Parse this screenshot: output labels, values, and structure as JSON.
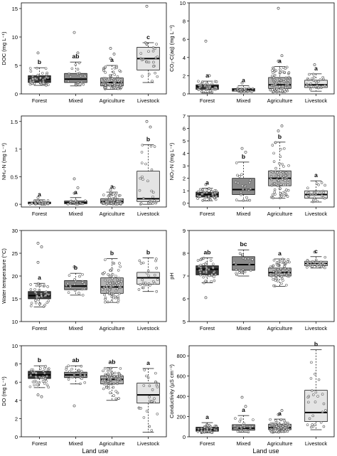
{
  "figure": {
    "xlabel": "Land use"
  },
  "chart_data": [
    {
      "type": "box",
      "id": "doc",
      "ylabel": "DOC (mg L⁻¹)",
      "ylim": [
        0,
        16
      ],
      "yticks": [
        0,
        5,
        10,
        15
      ],
      "categories": [
        "Forest",
        "Mixed",
        "Agriculture",
        "Livestock"
      ],
      "letters": [
        "b",
        "ab",
        "a",
        "c"
      ],
      "box_colors": [
        "#3a3a3a",
        "#8a8a8a",
        "#b3b3b3",
        "#e4e4e4"
      ],
      "boxes": [
        {
          "min": 1.5,
          "q1": 2.0,
          "median": 2.6,
          "q3": 3.2,
          "max": 4.6,
          "n": 40,
          "outliers": [
            7.2
          ]
        },
        {
          "min": 1.4,
          "q1": 2.0,
          "median": 2.6,
          "q3": 3.6,
          "max": 5.6,
          "n": 22,
          "outliers": [
            10.8,
            7.2
          ]
        },
        {
          "min": 0.8,
          "q1": 1.4,
          "median": 2.0,
          "q3": 2.8,
          "max": 5.0,
          "n": 75,
          "outliers": [
            6.2,
            7.0,
            8.0
          ]
        },
        {
          "min": 2.0,
          "q1": 4.2,
          "median": 6.2,
          "q3": 8.2,
          "max": 9.0,
          "n": 25,
          "outliers": [
            15.4
          ]
        }
      ]
    },
    {
      "type": "box",
      "id": "co2",
      "ylabel": "CO₂-C(aq) (mg L⁻¹)",
      "ylim": [
        0,
        10
      ],
      "yticks": [
        0,
        2,
        4,
        6,
        8,
        10
      ],
      "categories": [
        "Forest",
        "Mixed",
        "Agriculture",
        "Livestock"
      ],
      "letters": [
        "a",
        "a",
        "a",
        "a"
      ],
      "box_colors": [
        "#3a3a3a",
        "#8a8a8a",
        "#b3b3b3",
        "#e4e4e4"
      ],
      "boxes": [
        {
          "min": 0.1,
          "q1": 0.5,
          "median": 0.8,
          "q3": 1.0,
          "max": 1.4,
          "n": 40,
          "outliers": [
            5.8,
            2.0
          ]
        },
        {
          "min": 0.2,
          "q1": 0.3,
          "median": 0.45,
          "q3": 0.6,
          "max": 0.9,
          "n": 22,
          "outliers": [
            1.2
          ]
        },
        {
          "min": 0.2,
          "q1": 0.6,
          "median": 1.0,
          "q3": 1.8,
          "max": 3.0,
          "n": 75,
          "outliers": [
            9.4,
            4.2,
            3.6
          ]
        },
        {
          "min": 0.3,
          "q1": 0.7,
          "median": 1.0,
          "q3": 1.5,
          "max": 2.2,
          "n": 25,
          "outliers": [
            3.2
          ]
        }
      ]
    },
    {
      "type": "box",
      "id": "nh4",
      "ylabel": "NH₄-N (mg L⁻¹)",
      "ylim": [
        -0.05,
        1.6
      ],
      "yticks": [
        0.0,
        0.5,
        1.0,
        1.5
      ],
      "categories": [
        "Forest",
        "Mixed",
        "Agriculture",
        "Livestock"
      ],
      "letters": [
        "a",
        "a",
        "a",
        "b"
      ],
      "box_colors": [
        "#3a3a3a",
        "#8a8a8a",
        "#b3b3b3",
        "#e4e4e4"
      ],
      "boxes": [
        {
          "min": 0.0,
          "q1": 0.01,
          "median": 0.02,
          "q3": 0.04,
          "max": 0.08,
          "n": 40,
          "outliers": [
            0.12
          ]
        },
        {
          "min": 0.0,
          "q1": 0.01,
          "median": 0.03,
          "q3": 0.06,
          "max": 0.12,
          "n": 22,
          "outliers": [
            0.46,
            0.3,
            0.2
          ]
        },
        {
          "min": 0.0,
          "q1": 0.02,
          "median": 0.05,
          "q3": 0.1,
          "max": 0.22,
          "n": 75,
          "outliers": [
            0.26,
            0.3
          ]
        },
        {
          "min": 0.0,
          "q1": 0.05,
          "median": 0.1,
          "q3": 0.6,
          "max": 1.08,
          "n": 25,
          "outliers": [
            1.5,
            1.4
          ]
        }
      ]
    },
    {
      "type": "box",
      "id": "no3",
      "ylabel": "NO₃-N (mg L⁻¹)",
      "ylim": [
        -0.3,
        7
      ],
      "yticks": [
        0,
        1,
        2,
        3,
        4,
        5,
        6,
        7
      ],
      "categories": [
        "Forest",
        "Mixed",
        "Agriculture",
        "Livestock"
      ],
      "letters": [
        "a",
        "b",
        "b",
        "a"
      ],
      "box_colors": [
        "#3a3a3a",
        "#8a8a8a",
        "#b3b3b3",
        "#e4e4e4"
      ],
      "boxes": [
        {
          "min": 0.2,
          "q1": 0.5,
          "median": 0.7,
          "q3": 0.9,
          "max": 1.2,
          "n": 40,
          "outliers": [
            1.5
          ]
        },
        {
          "min": 0.2,
          "q1": 0.7,
          "median": 1.1,
          "q3": 2.0,
          "max": 3.3,
          "n": 22,
          "outliers": [
            4.4,
            4.1
          ]
        },
        {
          "min": 0.4,
          "q1": 1.4,
          "median": 2.0,
          "q3": 2.6,
          "max": 4.9,
          "n": 75,
          "outliers": [
            5.8,
            6.2
          ]
        },
        {
          "min": 0.1,
          "q1": 0.4,
          "median": 0.7,
          "q3": 1.0,
          "max": 1.8,
          "n": 25,
          "outliers": []
        }
      ]
    },
    {
      "type": "box",
      "id": "temp",
      "ylabel": "Water temperature (°C)",
      "ylim": [
        10,
        30
      ],
      "yticks": [
        10,
        15,
        20,
        25,
        30
      ],
      "categories": [
        "Forest",
        "Mixed",
        "Agriculture",
        "Livestock"
      ],
      "letters": [
        "a",
        "b",
        "b",
        "b"
      ],
      "box_colors": [
        "#3a3a3a",
        "#8a8a8a",
        "#b3b3b3",
        "#e4e4e4"
      ],
      "boxes": [
        {
          "min": 13.2,
          "q1": 15.0,
          "median": 15.7,
          "q3": 16.6,
          "max": 18.4,
          "n": 40,
          "outliers": [
            27.2,
            26.4,
            23.0
          ]
        },
        {
          "min": 15.8,
          "q1": 17.0,
          "median": 17.8,
          "q3": 19.0,
          "max": 20.6,
          "n": 22,
          "outliers": [
            22.0
          ]
        },
        {
          "min": 14.2,
          "q1": 16.2,
          "median": 17.6,
          "q3": 19.6,
          "max": 23.8,
          "n": 75,
          "outliers": []
        },
        {
          "min": 16.6,
          "q1": 18.2,
          "median": 19.6,
          "q3": 20.8,
          "max": 24.0,
          "n": 25,
          "outliers": []
        }
      ]
    },
    {
      "type": "box",
      "id": "ph",
      "ylabel": "pH",
      "ylim": [
        5,
        9
      ],
      "yticks": [
        5,
        6,
        7,
        8,
        9
      ],
      "categories": [
        "Forest",
        "Mixed",
        "Agriculture",
        "Livestock"
      ],
      "letters": [
        "ab",
        "bc",
        "a",
        "c"
      ],
      "box_colors": [
        "#3a3a3a",
        "#8a8a8a",
        "#b3b3b3",
        "#e4e4e4"
      ],
      "boxes": [
        {
          "min": 6.7,
          "q1": 7.05,
          "median": 7.3,
          "q3": 7.45,
          "max": 7.8,
          "n": 40,
          "outliers": [
            6.05
          ]
        },
        {
          "min": 7.0,
          "q1": 7.25,
          "median": 7.5,
          "q3": 7.85,
          "max": 8.15,
          "n": 22,
          "outliers": []
        },
        {
          "min": 6.55,
          "q1": 7.0,
          "median": 7.15,
          "q3": 7.35,
          "max": 7.75,
          "n": 75,
          "outliers": []
        },
        {
          "min": 7.35,
          "q1": 7.45,
          "median": 7.55,
          "q3": 7.65,
          "max": 7.85,
          "n": 25,
          "outliers": [
            8.05
          ]
        }
      ]
    },
    {
      "type": "box",
      "id": "do",
      "ylabel": "DO (mg L⁻¹)",
      "ylim": [
        0,
        10
      ],
      "yticks": [
        0,
        2,
        4,
        6,
        8,
        10
      ],
      "categories": [
        "Forest",
        "Mixed",
        "Agriculture",
        "Livestock"
      ],
      "letters": [
        "b",
        "ab",
        "ab",
        "a"
      ],
      "box_colors": [
        "#3a3a3a",
        "#8a8a8a",
        "#b3b3b3",
        "#e4e4e4"
      ],
      "boxes": [
        {
          "min": 5.4,
          "q1": 6.4,
          "median": 6.8,
          "q3": 7.2,
          "max": 7.8,
          "n": 40,
          "outliers": [
            4.6,
            4.4
          ]
        },
        {
          "min": 5.8,
          "q1": 6.5,
          "median": 6.8,
          "q3": 7.1,
          "max": 7.8,
          "n": 22,
          "outliers": [
            3.4
          ]
        },
        {
          "min": 4.0,
          "q1": 5.8,
          "median": 6.3,
          "q3": 6.7,
          "max": 7.6,
          "n": 75,
          "outliers": []
        },
        {
          "min": 0.5,
          "q1": 3.7,
          "median": 4.6,
          "q3": 5.9,
          "max": 7.5,
          "n": 25,
          "outliers": []
        }
      ]
    },
    {
      "type": "box",
      "id": "cond",
      "ylabel": "Conductivity (µS cm⁻¹)",
      "ylim": [
        0,
        900
      ],
      "yticks": [
        0,
        200,
        400,
        600,
        800
      ],
      "categories": [
        "Forest",
        "Mixed",
        "Agriculture",
        "Livestock"
      ],
      "letters": [
        "a",
        "a",
        "a",
        "b"
      ],
      "box_colors": [
        "#3a3a3a",
        "#8a8a8a",
        "#b3b3b3",
        "#e4e4e4"
      ],
      "boxes": [
        {
          "min": 40,
          "q1": 55,
          "median": 70,
          "q3": 95,
          "max": 140,
          "n": 40,
          "outliers": []
        },
        {
          "min": 45,
          "q1": 65,
          "median": 85,
          "q3": 120,
          "max": 210,
          "n": 22,
          "outliers": [
            390,
            300
          ]
        },
        {
          "min": 45,
          "q1": 70,
          "median": 90,
          "q3": 125,
          "max": 175,
          "n": 75,
          "outliers": [
            220,
            260
          ]
        },
        {
          "min": 70,
          "q1": 150,
          "median": 240,
          "q3": 460,
          "max": 860,
          "n": 25,
          "outliers": []
        }
      ]
    }
  ]
}
